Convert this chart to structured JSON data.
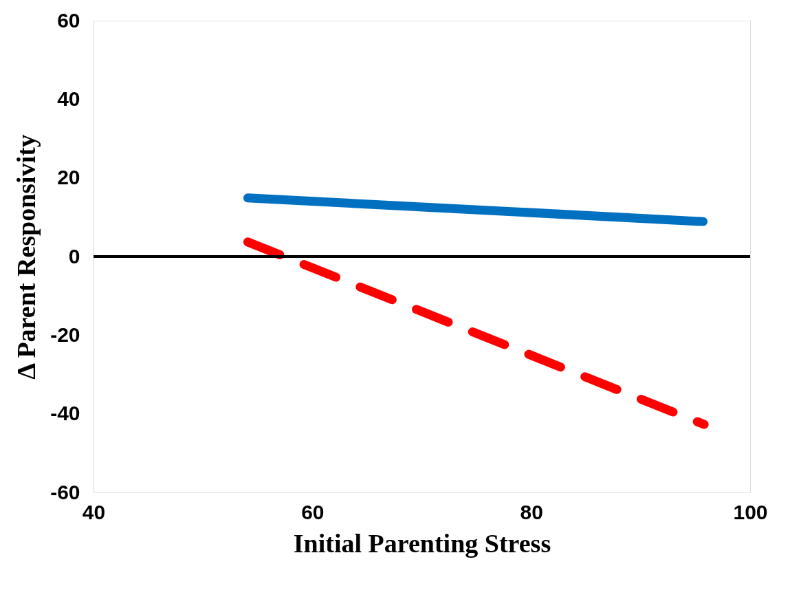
{
  "chart_data": {
    "type": "line",
    "xlabel": "Initial Parenting Stress",
    "ylabel": "Δ Parent Responsivity",
    "xlim": [
      40,
      100
    ],
    "xticks": [
      40,
      60,
      80,
      100
    ],
    "ylim": [
      -60,
      60
    ],
    "yticks": [
      -60,
      -40,
      -20,
      0,
      20,
      40,
      60
    ],
    "grid": false,
    "marker": "none",
    "series": [
      {
        "color": "#0070c0",
        "x": [
          54.1,
          95.7
        ],
        "values": [
          14.9,
          8.9
        ],
        "line_style": "solid"
      },
      {
        "color": "#ff0000",
        "x": [
          54.1,
          95.8
        ],
        "values": [
          3.7,
          -42.7
        ],
        "line_style": "dashed"
      }
    ],
    "ref_lines": [
      {
        "axis": "y",
        "value": 0,
        "color": "#000000",
        "line_style": "solid"
      }
    ]
  }
}
